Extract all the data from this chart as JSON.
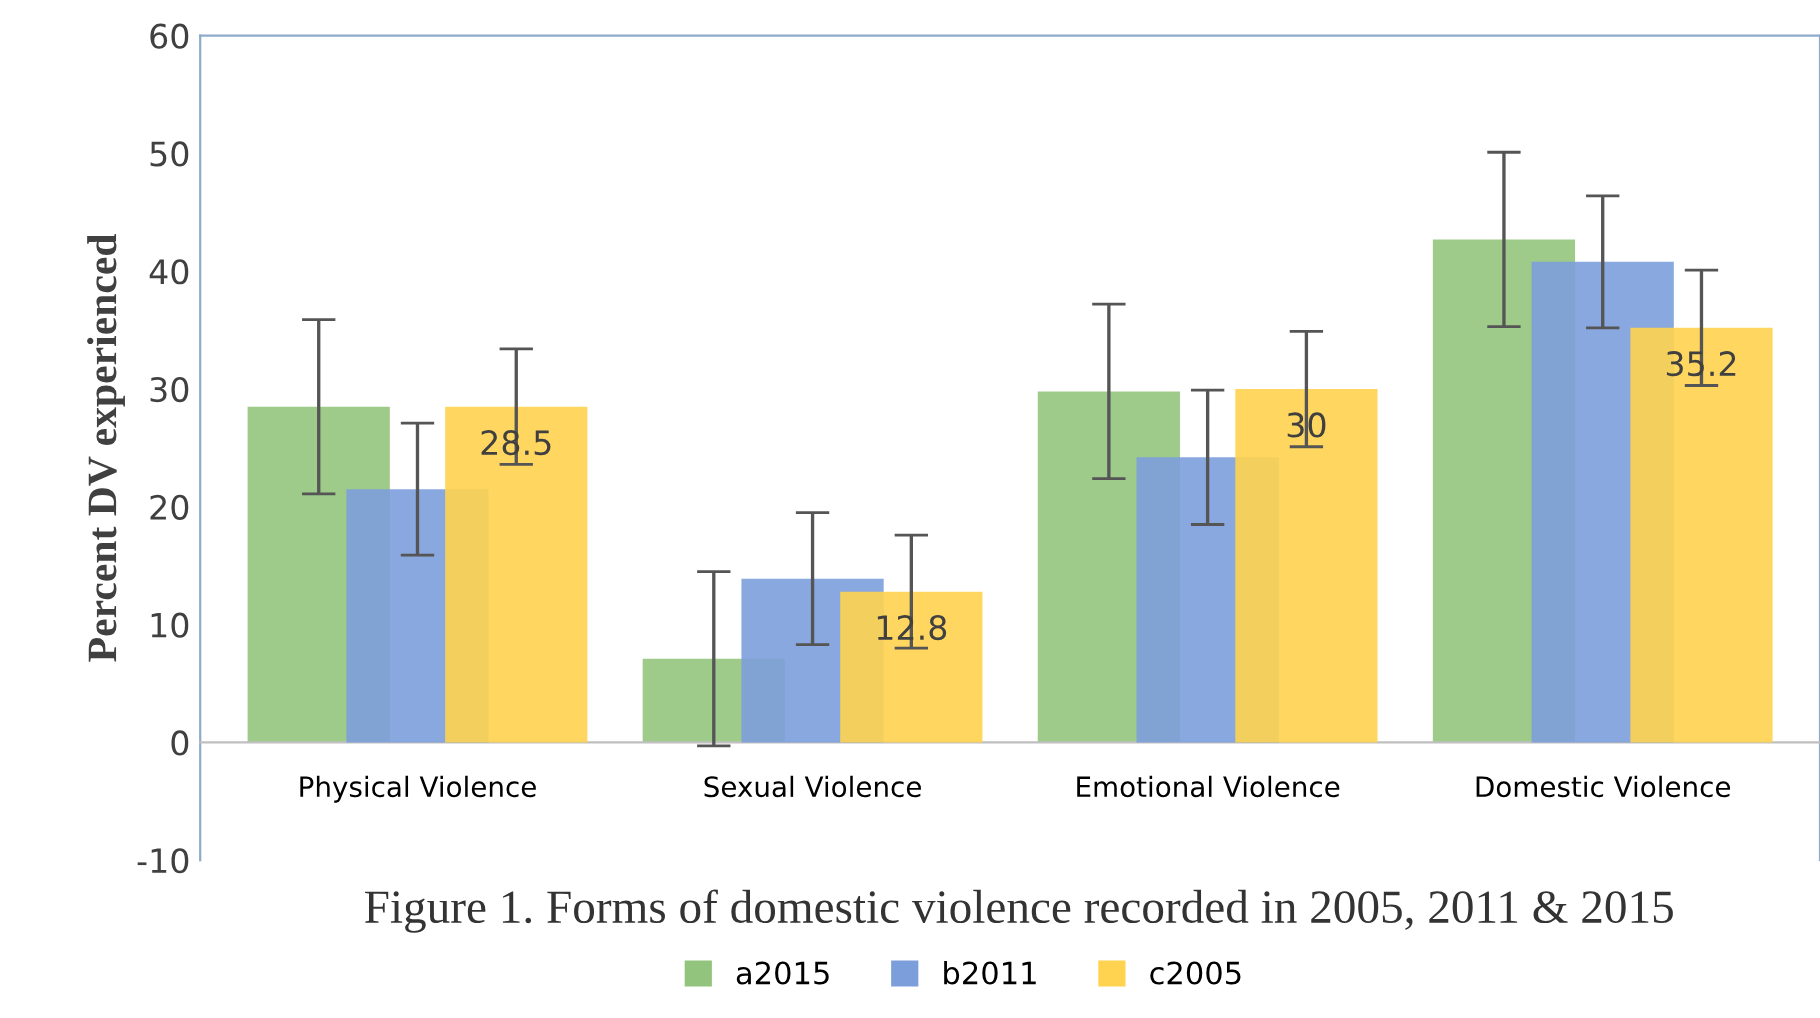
{
  "chart_data": {
    "type": "bar",
    "title": "Figure 1. Forms of domestic violence recorded in 2005, 2011 & 2015",
    "ylabel": "Percent DV experienced",
    "categories": [
      "Physical Violence",
      "Sexual Violence",
      "Emotional Violence",
      "Domestic Violence"
    ],
    "series": [
      {
        "name": "a2015",
        "color": "#93c47d",
        "values": [
          28.5,
          7.1,
          29.8,
          42.7
        ],
        "errors": [
          7.4,
          7.4,
          7.4,
          7.4
        ]
      },
      {
        "name": "b2011",
        "color": "#7c9fdc",
        "values": [
          21.5,
          13.9,
          24.2,
          40.8
        ],
        "errors": [
          5.6,
          5.6,
          5.7,
          5.6
        ]
      },
      {
        "name": "c2005",
        "color": "#ffd34f",
        "values": [
          28.5,
          12.8,
          30,
          35.2
        ],
        "errors": [
          4.9,
          4.8,
          4.9,
          4.9
        ],
        "value_labels": [
          "28.5",
          "12.8",
          "30",
          "35.2"
        ]
      }
    ],
    "ylim": [
      -10,
      60
    ],
    "yticks": [
      -10,
      0,
      10,
      20,
      30,
      40,
      50,
      60
    ],
    "grid": false,
    "legend": "bottom"
  }
}
